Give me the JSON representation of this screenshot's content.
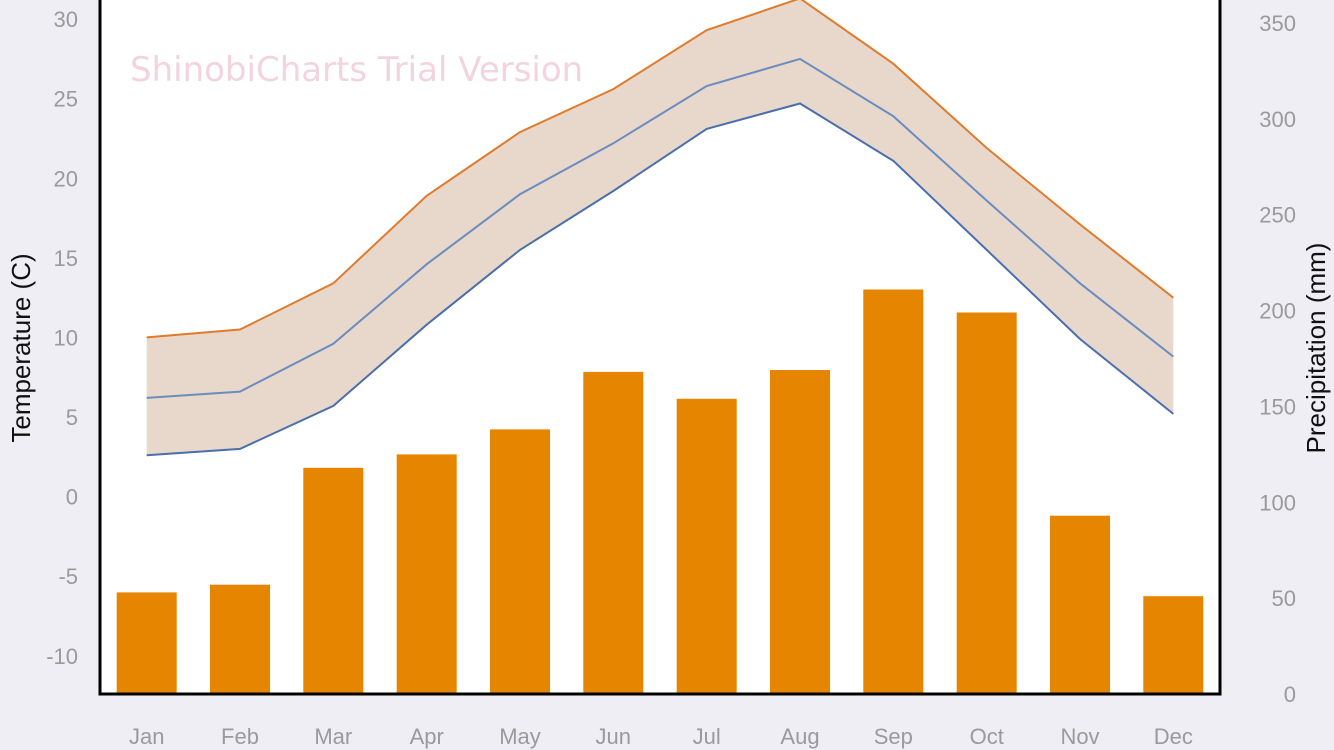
{
  "chart_data": {
    "type": "bar",
    "watermark": "ShinobiCharts Trial Version",
    "categories": [
      "Jan",
      "Feb",
      "Mar",
      "Apr",
      "May",
      "Jun",
      "Jul",
      "Aug",
      "Sep",
      "Oct",
      "Nov",
      "Dec"
    ],
    "y_left": {
      "label": "Temperature (C)",
      "ticks": [
        "30",
        "25",
        "20",
        "15",
        "10",
        "5",
        "0",
        "-5",
        "-10"
      ],
      "tick_values": [
        30,
        25,
        20,
        15,
        10,
        5,
        0,
        -5,
        -10
      ],
      "range": [
        -12.4,
        31.2
      ]
    },
    "y_right": {
      "label": "Precipitation (mm)",
      "ticks": [
        "350",
        "300",
        "250",
        "200",
        "150",
        "100",
        "50",
        "0"
      ],
      "tick_values": [
        350,
        300,
        250,
        200,
        150,
        100,
        50,
        0
      ],
      "range": [
        0,
        362
      ]
    },
    "precipitation": {
      "axis": "right",
      "values": [
        53,
        57,
        118,
        125,
        138,
        168,
        154,
        169,
        211,
        199,
        93,
        51
      ]
    },
    "temperature_series": [
      {
        "id": "high",
        "axis": "left",
        "values": [
          10.0,
          10.5,
          13.4,
          18.9,
          22.9,
          25.6,
          29.3,
          31.3,
          27.2,
          21.9,
          17.1,
          12.5
        ]
      },
      {
        "id": "mean",
        "axis": "left",
        "values": [
          6.2,
          6.6,
          9.6,
          14.6,
          19.0,
          22.2,
          25.8,
          27.5,
          23.9,
          18.6,
          13.4,
          8.8
        ]
      },
      {
        "id": "low",
        "axis": "left",
        "values": [
          2.6,
          3.0,
          5.7,
          10.8,
          15.5,
          19.2,
          23.1,
          24.7,
          21.1,
          15.5,
          9.9,
          5.2
        ]
      }
    ],
    "colors": {
      "bars": "#e68600",
      "band_fill": "#e8d8cb",
      "high_line": "#e07b2c",
      "mean_line": "#6b8cc0",
      "low_line": "#4a6fad",
      "plot_background": "#ffffff",
      "page_background": "#efeef4"
    },
    "grid": false
  }
}
